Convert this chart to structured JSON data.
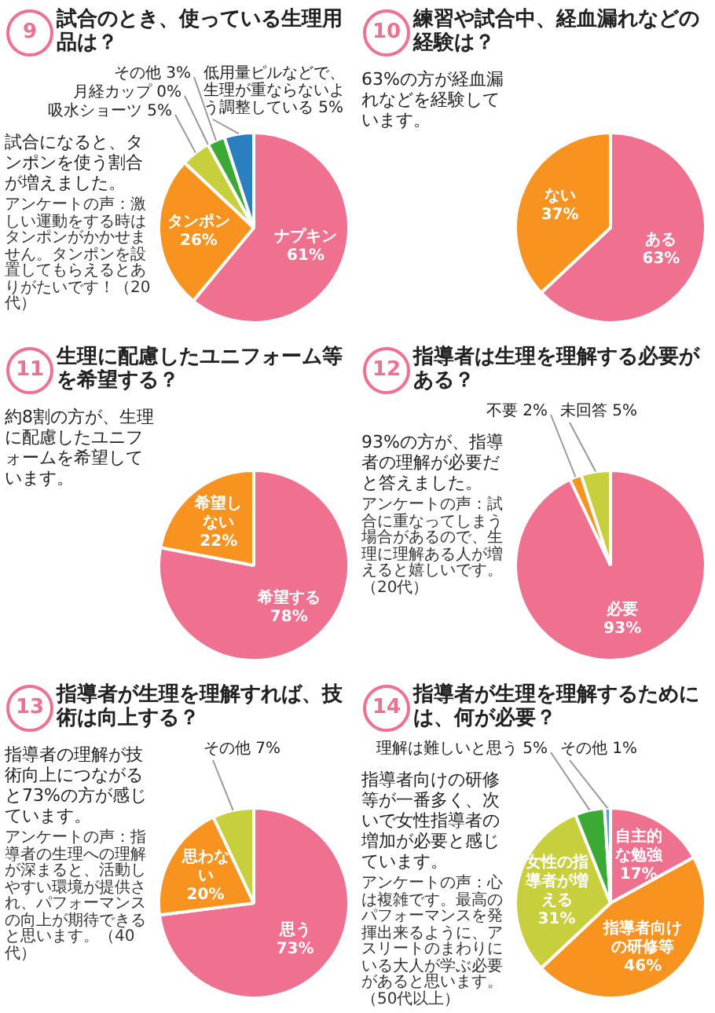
{
  "chart_data": [
    {
      "type": "pie",
      "title": "試合のとき、使っている生理用品は？",
      "categories": [
        "ナプキン",
        "タンポン",
        "吸水ショーツ",
        "月経カップ",
        "その他",
        "低用量ピルなどで、生理が重ならないよう調整している"
      ],
      "values": [
        61,
        26,
        5,
        0,
        3,
        5
      ],
      "value_labels": [
        "61%",
        "26%",
        "5%",
        "0%",
        "3%",
        "5%"
      ],
      "colors": [
        "#f07090",
        "#f7931e",
        "#c8cf3c",
        "#3aaa35",
        "#3aaa35",
        "#2a7fc0"
      ],
      "annotations": [
        "9",
        "試合になると、タンポンを使う割合が増えました。",
        "アンケートの声：激しい運動をする時はタンポンがかかせません。タンポンを設置してもらえるとありがたいです！（20代）"
      ]
    },
    {
      "type": "pie",
      "title": "練習や試合中、経血漏れなどの経験は？",
      "categories": [
        "ある",
        "ない"
      ],
      "values": [
        63,
        37
      ],
      "value_labels": [
        "63%",
        "37%"
      ],
      "colors": [
        "#f07090",
        "#f7931e"
      ],
      "annotations": [
        "10",
        "63%の方が経血漏れなどを経験しています。"
      ]
    },
    {
      "type": "pie",
      "title": "生理に配慮したユニフォーム等を希望する？",
      "categories": [
        "希望する",
        "希望しない"
      ],
      "values": [
        78,
        22
      ],
      "value_labels": [
        "78%",
        "22%"
      ],
      "colors": [
        "#f07090",
        "#f7931e"
      ],
      "annotations": [
        "11",
        "約8割の方が、生理に配慮したユニフォームを希望しています。"
      ]
    },
    {
      "type": "pie",
      "title": "指導者は生理を理解する必要がある？",
      "categories": [
        "必要",
        "不要",
        "未回答"
      ],
      "values": [
        93,
        2,
        5
      ],
      "value_labels": [
        "93%",
        "2%",
        "5%"
      ],
      "colors": [
        "#f07090",
        "#f7931e",
        "#c8cf3c"
      ],
      "annotations": [
        "12",
        "93%の方が、指導者の理解が必要だと答えました。",
        "アンケートの声：試合に重なってしまう場合があるので、生理に理解ある人が増えると嬉しいです。（20代）"
      ]
    },
    {
      "type": "pie",
      "title": "指導者が生理を理解すれば、技術は向上する？",
      "categories": [
        "思う",
        "思わない",
        "その他"
      ],
      "values": [
        73,
        20,
        7
      ],
      "value_labels": [
        "73%",
        "20%",
        "7%"
      ],
      "colors": [
        "#f07090",
        "#f7931e",
        "#c8cf3c"
      ],
      "annotations": [
        "13",
        "指導者の理解が技術向上につながると73%の方が感じています。",
        "アンケートの声：指導者の生理への理解が深まると、活動しやすい環境が提供され、パフォーマンスの向上が期待できると思います。（40代）"
      ]
    },
    {
      "type": "pie",
      "title": "指導者が生理を理解するためには、何が必要？",
      "categories": [
        "自主的な勉強",
        "指導者向けの研修等",
        "女性の指導者が増える",
        "理解は難しいと思う",
        "その他"
      ],
      "values": [
        17,
        46,
        31,
        5,
        1
      ],
      "value_labels": [
        "17%",
        "46%",
        "31%",
        "5%",
        "1%"
      ],
      "colors": [
        "#f07090",
        "#f7931e",
        "#c8cf3c",
        "#3aaa35",
        "#5b9bd5"
      ],
      "annotations": [
        "14",
        "指導者向けの研修等が一番多く、次いで女性指導者の増加が必要と感じています。",
        "アンケートの声：心は複雑です。最高のパフォーマンスを発揮出来るように、アスリートのまわりにいる大人が学ぶ必要があると思います。（50代以上）"
      ]
    }
  ]
}
